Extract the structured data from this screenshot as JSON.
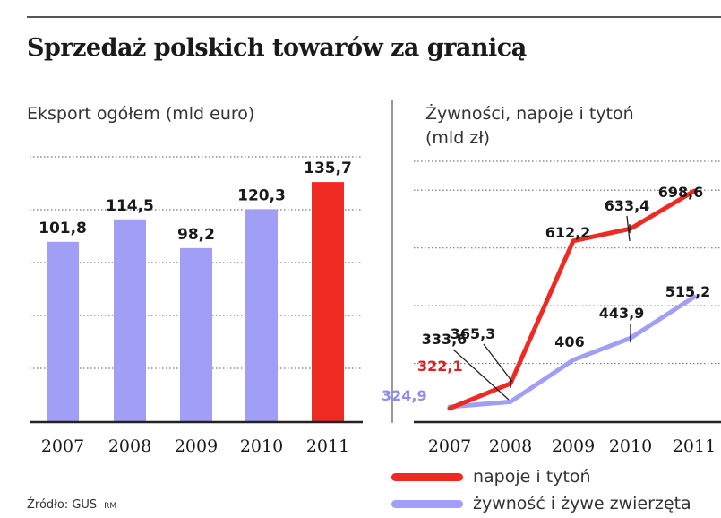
{
  "header": {
    "title": "Sprzedaż polskich towarów za granicą"
  },
  "footer": {
    "source": "Źródło: GUS",
    "author_initials": "RM"
  },
  "colors": {
    "bar_default": "#a09ef5",
    "bar_highlight": "#ee2a22",
    "line_red": "#ee2a22",
    "line_lavender": "#a09ef5",
    "label_red": "#e02020",
    "label_lavender": "#8f8ced"
  },
  "chart_data": [
    {
      "type": "bar",
      "title": "Eksport ogółem (mld euro)",
      "categories": [
        "2007",
        "2008",
        "2009",
        "2010",
        "2011"
      ],
      "values": [
        101.8,
        114.5,
        98.2,
        120.3,
        135.7
      ],
      "value_labels": [
        "101,8",
        "114,5",
        "98,2",
        "120,3",
        "135,7"
      ],
      "highlight_index": 4,
      "ylim": [
        0,
        150
      ],
      "grid": true
    },
    {
      "type": "line",
      "title": "Żywności, napoje i tytoń",
      "title_line2": "(mld zł)",
      "categories": [
        "2007",
        "2008",
        "2009",
        "2010",
        "2011"
      ],
      "series": [
        {
          "name": "napoje i tytoń",
          "color": "#ee2a22",
          "values": [
            322.1,
            365.3,
            612.2,
            633.4,
            698.6
          ],
          "labels": [
            "322,1",
            "365,3",
            "612,2",
            "633,4",
            "698,6"
          ]
        },
        {
          "name": "żywność i żywe zwierzęta",
          "color": "#a09ef5",
          "values": [
            324.9,
            333.6,
            406,
            443.9,
            515.2
          ],
          "labels": [
            "324,9",
            "333,6",
            "406",
            "443,9",
            "515,2"
          ]
        }
      ],
      "ylim": [
        300,
        750
      ],
      "grid": true,
      "legend_position": "bottom"
    }
  ]
}
